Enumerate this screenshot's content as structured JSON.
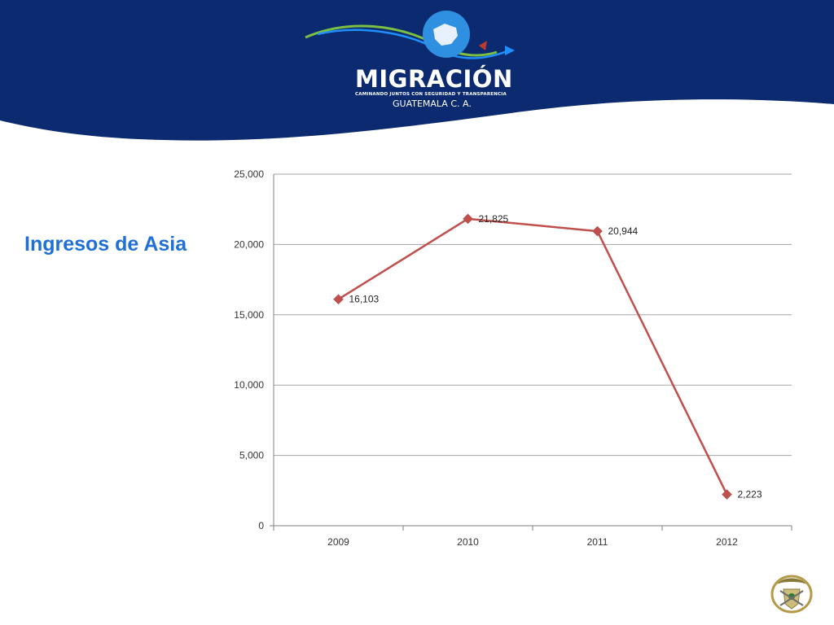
{
  "slide": {
    "title": "Ingresos de Asia"
  },
  "logo": {
    "name": "MIGRACIÓN",
    "tagline": "CAMINANDO JUNTOS CON SEGURIDAD Y TRANSPARENCIA",
    "country": "GUATEMALA C. A."
  },
  "colors": {
    "banner": "#0b2a6f",
    "title": "#1f6fd8",
    "series": "#c0504d",
    "grid": "#a6a6a6"
  },
  "chart_data": {
    "type": "line",
    "categories": [
      "2009",
      "2010",
      "2011",
      "2012"
    ],
    "series": [
      {
        "values": [
          16103,
          21825,
          20944,
          2223
        ]
      }
    ],
    "data_labels": [
      "16,103",
      "21,825",
      "20,944",
      "2,223"
    ],
    "ylim": [
      0,
      25000
    ],
    "yticks": [
      0,
      5000,
      10000,
      15000,
      20000,
      25000
    ],
    "ytick_labels": [
      "0",
      "5,000",
      "10,000",
      "15,000",
      "20,000",
      "25,000"
    ],
    "marker": "diamond",
    "grid": true,
    "legend": "none"
  }
}
